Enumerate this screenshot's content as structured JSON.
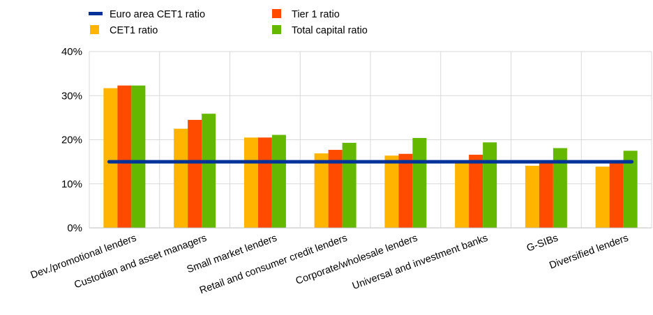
{
  "chart_data": {
    "type": "bar",
    "categories": [
      "Dev./promotional lenders",
      "Custodian and asset managers",
      "Small market lenders",
      "Retail and consumer credit lenders",
      "Corporate/wholesale lenders",
      "Universal and investment banks",
      "G-SIBs",
      "Diversified lenders"
    ],
    "series": [
      {
        "name": "CET1 ratio",
        "color": "#FFB400",
        "values": [
          31.7,
          22.5,
          20.5,
          16.9,
          16.4,
          14.8,
          14.1,
          13.9
        ]
      },
      {
        "name": "Tier 1 ratio",
        "color": "#FF4B00",
        "values": [
          32.3,
          24.5,
          20.5,
          17.7,
          16.8,
          16.6,
          15.3,
          14.9
        ]
      },
      {
        "name": "Total capital ratio",
        "color": "#65B800",
        "values": [
          32.3,
          25.9,
          21.1,
          19.3,
          20.4,
          19.4,
          18.1,
          17.5
        ]
      }
    ],
    "line": {
      "name": "Euro area CET1 ratio",
      "color": "#003299",
      "value": 15.0
    },
    "ylim": [
      0,
      40
    ],
    "yticks": [
      "0%",
      "10%",
      "20%",
      "30%",
      "40%"
    ],
    "grid": true,
    "legend_position": "top-left",
    "legend_order": [
      "Euro area CET1 ratio",
      "Tier 1 ratio",
      "CET1 ratio",
      "Total capital ratio"
    ]
  }
}
